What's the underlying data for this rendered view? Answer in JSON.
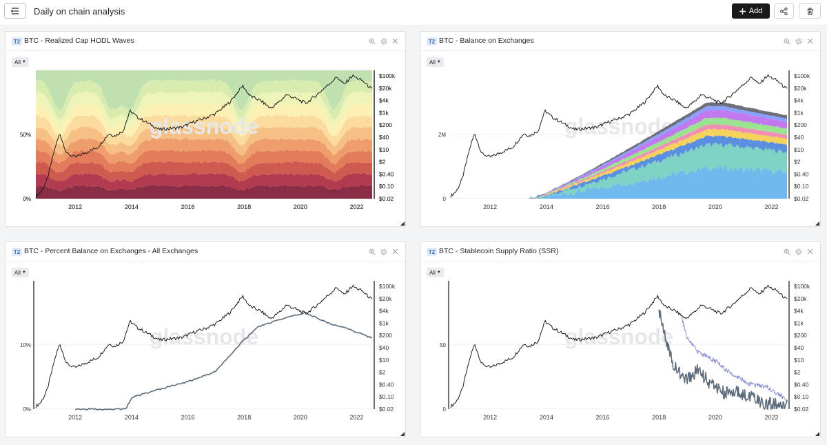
{
  "header": {
    "title": "Daily on chain analysis",
    "add_label": "Add"
  },
  "panels": [
    {
      "tier": "T2",
      "title": "BTC - Realized Cap HODL Waves",
      "range": "All",
      "left_ticks": [
        "50%",
        "0%"
      ],
      "chart_type": "area"
    },
    {
      "tier": "T2",
      "title": "BTC - Balance on Exchanges",
      "range": "All",
      "left_ticks": [
        "2M",
        "0"
      ],
      "chart_type": "area"
    },
    {
      "tier": "T2",
      "title": "BTC - Percent Balance on Exchanges - All Exchanges",
      "range": "All",
      "left_ticks": [
        "10%",
        "0%"
      ],
      "chart_type": "line"
    },
    {
      "tier": "T2",
      "title": "BTC - Stablecoin Supply Ratio (SSR)",
      "range": "All",
      "left_ticks": [
        "50",
        "0"
      ],
      "chart_type": "line"
    }
  ],
  "shared_axes": {
    "x_ticks": [
      "2012",
      "2014",
      "2016",
      "2018",
      "2020",
      "2022"
    ],
    "price_ticks": [
      "$100k",
      "$20k",
      "$4k",
      "$1k",
      "$200",
      "$40",
      "$10",
      "$2",
      "$0.40",
      "$0.10",
      "$0.02"
    ]
  },
  "watermark": "glassnode",
  "colors": {
    "price_line": "#1a1a1a",
    "metric_line": "#5a6b7b",
    "ssr_line": "#7b7fd6",
    "accent_tier": "#3c6fc0"
  },
  "icons": [
    "menu-icon",
    "plus-icon",
    "share-icon",
    "trash-icon",
    "zoom-icon",
    "gear-icon",
    "close-icon",
    "caret-down-icon"
  ]
}
